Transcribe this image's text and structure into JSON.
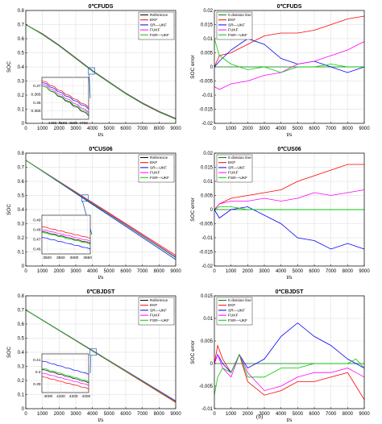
{
  "footer": {
    "panel_b_label": "(b)"
  },
  "colors": {
    "Reference": "#000000",
    "EKF": "#ff0000",
    "SR—UKF": "#0000ff",
    "FUKF": "#ff00ff",
    "FSR—UKF": "#00cc00",
    "0 division line": "#008000"
  },
  "chart_data": [
    {
      "id": "fuds-soc",
      "type": "line",
      "title": "0℃FUDS",
      "xlabel": "t/s",
      "ylabel": "SOC",
      "xlim": [
        0,
        9000
      ],
      "ylim": [
        0,
        0.8
      ],
      "xticks": [
        0,
        1000,
        2000,
        3000,
        4000,
        5000,
        6000,
        7000,
        8000,
        9000
      ],
      "yticks": [
        0,
        0.1,
        0.2,
        0.3,
        0.4,
        0.5,
        0.6,
        0.7,
        0.8
      ],
      "grid": true,
      "legend": "top-right",
      "legend_entries": [
        "Reference",
        "EKF",
        "SR—UKF",
        "FUKF",
        "FSR—UKF"
      ],
      "series": [
        {
          "name": "Reference",
          "x": [
            0,
            1000,
            2000,
            3000,
            4000,
            5000,
            6000,
            7000,
            8000,
            9000
          ],
          "y": [
            0.7,
            0.63,
            0.55,
            0.46,
            0.37,
            0.29,
            0.21,
            0.14,
            0.08,
            0.03
          ]
        },
        {
          "name": "EKF",
          "x": [
            0,
            1000,
            2000,
            3000,
            4000,
            5000,
            6000,
            7000,
            8000,
            9000
          ],
          "y": [
            0.7,
            0.635,
            0.555,
            0.465,
            0.375,
            0.295,
            0.215,
            0.145,
            0.085,
            0.035
          ]
        },
        {
          "name": "SR—UKF",
          "x": [
            0,
            1000,
            2000,
            3000,
            4000,
            5000,
            6000,
            7000,
            8000,
            9000
          ],
          "y": [
            0.7,
            0.633,
            0.553,
            0.463,
            0.373,
            0.293,
            0.213,
            0.143,
            0.083,
            0.033
          ]
        },
        {
          "name": "FUKF",
          "x": [
            0,
            1000,
            2000,
            3000,
            4000,
            5000,
            6000,
            7000,
            8000,
            9000
          ],
          "y": [
            0.7,
            0.632,
            0.552,
            0.462,
            0.372,
            0.292,
            0.212,
            0.142,
            0.082,
            0.032
          ]
        },
        {
          "name": "FSR—UKF",
          "x": [
            0,
            1000,
            2000,
            3000,
            4000,
            5000,
            6000,
            7000,
            8000,
            9000
          ],
          "y": [
            0.7,
            0.631,
            0.551,
            0.461,
            0.371,
            0.291,
            0.211,
            0.141,
            0.081,
            0.031
          ]
        }
      ],
      "inset": {
        "xlim": [
          4300,
          4750
        ],
        "ylim": [
          0.35,
          0.375
        ],
        "xticks": [
          4400,
          4500,
          4600,
          4700
        ],
        "yticks": [
          0.355,
          0.36,
          0.365,
          0.37
        ],
        "series": [
          {
            "name": "Reference",
            "x": [
              4300,
              4750
            ],
            "y": [
              0.37,
              0.352
            ]
          },
          {
            "name": "EKF",
            "x": [
              4300,
              4750
            ],
            "y": [
              0.373,
              0.357
            ]
          },
          {
            "name": "SR—UKF",
            "x": [
              4300,
              4750
            ],
            "y": [
              0.372,
              0.356
            ]
          },
          {
            "name": "FUKF",
            "x": [
              4300,
              4750
            ],
            "y": [
              0.371,
              0.354
            ]
          },
          {
            "name": "FSR—UKF",
            "x": [
              4300,
              4750
            ],
            "y": [
              0.37,
              0.353
            ]
          }
        ]
      }
    },
    {
      "id": "fuds-err",
      "type": "line",
      "title": "0℃FUDS",
      "xlabel": "t/s",
      "ylabel": "SOC error",
      "xlim": [
        0,
        9000
      ],
      "ylim": [
        -0.02,
        0.02
      ],
      "xticks": [
        0,
        1000,
        2000,
        3000,
        4000,
        5000,
        6000,
        7000,
        8000,
        9000
      ],
      "yticks": [
        -0.02,
        -0.015,
        -0.01,
        -0.005,
        0,
        0.005,
        0.01,
        0.015,
        0.02
      ],
      "grid": true,
      "legend": "top-left",
      "legend_entries": [
        "0 division line",
        "EKF",
        "SR—UKF",
        "FUKF",
        "FSR—UKF"
      ],
      "series": [
        {
          "name": "0 division line",
          "x": [
            0,
            9000
          ],
          "y": [
            0,
            0
          ]
        },
        {
          "name": "EKF",
          "x": [
            0,
            300,
            1000,
            2000,
            3000,
            4000,
            5000,
            6000,
            7000,
            8000,
            9000
          ],
          "y": [
            0,
            0.004,
            0.005,
            0.008,
            0.011,
            0.012,
            0.012,
            0.013,
            0.015,
            0.017,
            0.018
          ]
        },
        {
          "name": "SR—UKF",
          "x": [
            0,
            300,
            1000,
            2000,
            3000,
            4000,
            5000,
            6000,
            7000,
            8000,
            9000
          ],
          "y": [
            0,
            0.002,
            0.006,
            0.01,
            0.008,
            0.003,
            0.001,
            0.002,
            0.0,
            -0.002,
            0.0
          ]
        },
        {
          "name": "FUKF",
          "x": [
            0,
            300,
            1000,
            2000,
            3000,
            4000,
            5000,
            6000,
            7000,
            8000,
            9000
          ],
          "y": [
            -0.007,
            -0.008,
            -0.006,
            -0.005,
            -0.003,
            -0.002,
            0.001,
            0.002,
            0.004,
            0.006,
            0.009
          ]
        },
        {
          "name": "FSR—UKF",
          "x": [
            0,
            300,
            1000,
            2000,
            3000,
            4000,
            5000,
            6000,
            7000,
            8000,
            9000
          ],
          "y": [
            0.01,
            0.004,
            0.001,
            -0.001,
            0.0,
            -0.002,
            0.0,
            0.0,
            0.001,
            0.0,
            0.0
          ]
        }
      ]
    },
    {
      "id": "us06-soc",
      "type": "line",
      "title": "0℃US06",
      "xlabel": "t/s",
      "ylabel": "SOC",
      "xlim": [
        0,
        9000
      ],
      "ylim": [
        0,
        0.8
      ],
      "xticks": [
        0,
        1000,
        2000,
        3000,
        4000,
        5000,
        6000,
        7000,
        8000,
        9000
      ],
      "yticks": [
        0,
        0.1,
        0.2,
        0.3,
        0.4,
        0.5,
        0.6,
        0.7,
        0.8
      ],
      "grid": true,
      "legend": "top-right",
      "legend_entries": [
        "Reference",
        "EKF",
        "SR—UKF",
        "FUKF",
        "FSR—UKF"
      ],
      "series": [
        {
          "name": "Reference",
          "x": [
            0,
            9000
          ],
          "y": [
            0.75,
            0.06
          ]
        },
        {
          "name": "EKF",
          "x": [
            0,
            9000
          ],
          "y": [
            0.75,
            0.076
          ]
        },
        {
          "name": "SR—UKF",
          "x": [
            0,
            9000
          ],
          "y": [
            0.75,
            0.046
          ]
        },
        {
          "name": "FUKF",
          "x": [
            0,
            9000
          ],
          "y": [
            0.75,
            0.066
          ]
        },
        {
          "name": "FSR—UKF",
          "x": [
            0,
            9000
          ],
          "y": [
            0.75,
            0.06
          ]
        }
      ],
      "inset": {
        "xlim": [
          3480,
          3660
        ],
        "ylim": [
          0.455,
          0.495
        ],
        "xticks": [
          3500,
          3550,
          3600,
          3650
        ],
        "yticks": [
          0.46,
          0.47,
          0.48,
          0.49
        ],
        "series": [
          {
            "name": "Reference",
            "x": [
              3480,
              3660
            ],
            "y": [
              0.478,
              0.466
            ]
          },
          {
            "name": "EKF",
            "x": [
              3480,
              3660
            ],
            "y": [
              0.483,
              0.471
            ]
          },
          {
            "name": "SR—UKF",
            "x": [
              3480,
              3660
            ],
            "y": [
              0.472,
              0.46
            ]
          },
          {
            "name": "FUKF",
            "x": [
              3480,
              3660
            ],
            "y": [
              0.48,
              0.468
            ]
          },
          {
            "name": "FSR—UKF",
            "x": [
              3480,
              3660
            ],
            "y": [
              0.477,
              0.465
            ]
          }
        ]
      }
    },
    {
      "id": "us06-err",
      "type": "line",
      "title": "0℃US06",
      "xlabel": "t/s",
      "ylabel": "SOC error",
      "xlim": [
        0,
        9000
      ],
      "ylim": [
        -0.02,
        0.02
      ],
      "xticks": [
        0,
        1000,
        2000,
        3000,
        4000,
        5000,
        6000,
        7000,
        8000,
        9000
      ],
      "yticks": [
        -0.02,
        -0.015,
        -0.01,
        -0.005,
        0,
        0.005,
        0.01,
        0.015,
        0.02
      ],
      "grid": true,
      "legend": "top-left",
      "legend_entries": [
        "0 division line",
        "EKF",
        "SR—UKF",
        "FUKF",
        "FSR—UKF"
      ],
      "series": [
        {
          "name": "0 division line",
          "x": [
            0,
            9000
          ],
          "y": [
            0,
            0
          ]
        },
        {
          "name": "EKF",
          "x": [
            0,
            300,
            1000,
            2000,
            3000,
            4000,
            5000,
            6000,
            7000,
            8000,
            9000
          ],
          "y": [
            0,
            0.002,
            0.004,
            0.005,
            0.006,
            0.007,
            0.01,
            0.012,
            0.014,
            0.016,
            0.016
          ]
        },
        {
          "name": "SR—UKF",
          "x": [
            0,
            300,
            1000,
            2000,
            3000,
            4000,
            5000,
            6000,
            7000,
            8000,
            9000
          ],
          "y": [
            0,
            -0.003,
            0.0,
            0.001,
            -0.002,
            -0.005,
            -0.01,
            -0.011,
            -0.014,
            -0.012,
            -0.014
          ]
        },
        {
          "name": "FUKF",
          "x": [
            0,
            300,
            1000,
            2000,
            3000,
            4000,
            5000,
            6000,
            7000,
            8000,
            9000
          ],
          "y": [
            0,
            0.002,
            0.003,
            0.003,
            0.004,
            0.003,
            0.004,
            0.006,
            0.005,
            0.006,
            0.007
          ]
        },
        {
          "name": "FSR—UKF",
          "x": [
            0,
            300,
            1000,
            2000,
            3000,
            4000,
            5000,
            6000,
            7000,
            8000,
            9000
          ],
          "y": [
            0,
            0.001,
            0.001,
            0.0,
            0.0,
            0.0,
            0.0,
            0.0,
            0.0,
            0.0,
            0.0
          ]
        }
      ]
    },
    {
      "id": "bjdst-soc",
      "type": "line",
      "title": "0℃BJDST",
      "xlabel": "t/s",
      "ylabel": "SOC",
      "xlim": [
        0,
        9000
      ],
      "ylim": [
        0,
        0.8
      ],
      "xticks": [
        0,
        1000,
        2000,
        3000,
        4000,
        5000,
        6000,
        7000,
        8000,
        9000
      ],
      "yticks": [
        0,
        0.1,
        0.2,
        0.3,
        0.4,
        0.5,
        0.6,
        0.7,
        0.8
      ],
      "grid": true,
      "legend": "top-right",
      "legend_entries": [
        "Reference",
        "EKF",
        "SR—UKF",
        "FUKF",
        "FSR—UKF"
      ],
      "series": [
        {
          "name": "Reference",
          "x": [
            0,
            9000
          ],
          "y": [
            0.7,
            0.05
          ]
        },
        {
          "name": "EKF",
          "x": [
            0,
            9000
          ],
          "y": [
            0.7,
            0.045
          ]
        },
        {
          "name": "SR—UKF",
          "x": [
            0,
            9000
          ],
          "y": [
            0.7,
            0.055
          ]
        },
        {
          "name": "FUKF",
          "x": [
            0,
            9000
          ],
          "y": [
            0.7,
            0.052
          ]
        },
        {
          "name": "FSR—UKF",
          "x": [
            0,
            9000
          ],
          "y": [
            0.7,
            0.05
          ]
        }
      ],
      "inset": {
        "xlim": [
          3950,
          4320
        ],
        "ylim": [
          0.383,
          0.415
        ],
        "xticks": [
          4000,
          4100,
          4200,
          4300
        ],
        "yticks": [
          0.39,
          0.4,
          0.41
        ],
        "series": [
          {
            "name": "Reference",
            "x": [
              3950,
              4320
            ],
            "y": [
              0.402,
              0.391
            ]
          },
          {
            "name": "EKF",
            "x": [
              3950,
              4320
            ],
            "y": [
              0.396,
              0.386
            ]
          },
          {
            "name": "SR—UKF",
            "x": [
              3950,
              4320
            ],
            "y": [
              0.409,
              0.398
            ]
          },
          {
            "name": "FUKF",
            "x": [
              3950,
              4320
            ],
            "y": [
              0.399,
              0.389
            ]
          },
          {
            "name": "FSR—UKF",
            "x": [
              3950,
              4320
            ],
            "y": [
              0.403,
              0.392
            ]
          }
        ]
      }
    },
    {
      "id": "bjdst-err",
      "type": "line",
      "title": "0℃BJDST",
      "xlabel": "t/s",
      "ylabel": "SOC error",
      "xlim": [
        0,
        9000
      ],
      "ylim": [
        -0.01,
        0.015
      ],
      "xticks": [
        0,
        1000,
        2000,
        3000,
        4000,
        5000,
        6000,
        7000,
        8000,
        9000
      ],
      "yticks": [
        -0.01,
        -0.005,
        0,
        0.005,
        0.01,
        0.015
      ],
      "grid": true,
      "legend": "top-left",
      "legend_entries": [
        "0 division line",
        "EKF",
        "SR—UKF",
        "FUKF",
        "FSR—UKF"
      ],
      "series": [
        {
          "name": "0 division line",
          "x": [
            0,
            9000
          ],
          "y": [
            0,
            0
          ]
        },
        {
          "name": "EKF",
          "x": [
            0,
            200,
            500,
            1000,
            1500,
            2000,
            3000,
            4000,
            5000,
            6000,
            7000,
            8000,
            8500,
            9000
          ],
          "y": [
            0,
            0.004,
            0.001,
            -0.002,
            0.002,
            -0.004,
            -0.007,
            -0.006,
            -0.004,
            -0.004,
            -0.003,
            -0.002,
            -0.005,
            -0.008
          ]
        },
        {
          "name": "SR—UKF",
          "x": [
            0,
            200,
            500,
            1000,
            1500,
            2000,
            3000,
            4000,
            5000,
            6000,
            7000,
            8000,
            8500,
            9000
          ],
          "y": [
            0,
            0.002,
            0.0,
            -0.002,
            0.002,
            -0.001,
            0.001,
            0.006,
            0.009,
            0.006,
            0.004,
            0.001,
            0.0,
            -0.001
          ]
        },
        {
          "name": "FUKF",
          "x": [
            0,
            200,
            500,
            1000,
            1500,
            2000,
            3000,
            4000,
            5000,
            6000,
            7000,
            8000,
            8500,
            9000
          ],
          "y": [
            0,
            0.002,
            -0.001,
            -0.003,
            0.002,
            -0.002,
            -0.006,
            -0.005,
            -0.003,
            -0.002,
            -0.002,
            -0.001,
            -0.002,
            -0.003
          ]
        },
        {
          "name": "FSR—UKF",
          "x": [
            0,
            200,
            500,
            1000,
            1500,
            2000,
            3000,
            4000,
            5000,
            6000,
            7000,
            8000,
            8500,
            9000
          ],
          "y": [
            -0.007,
            -0.003,
            -0.001,
            -0.002,
            0.002,
            -0.003,
            -0.003,
            -0.001,
            -0.001,
            0.0,
            0.0,
            0.0,
            0.001,
            -0.001
          ]
        }
      ]
    }
  ]
}
